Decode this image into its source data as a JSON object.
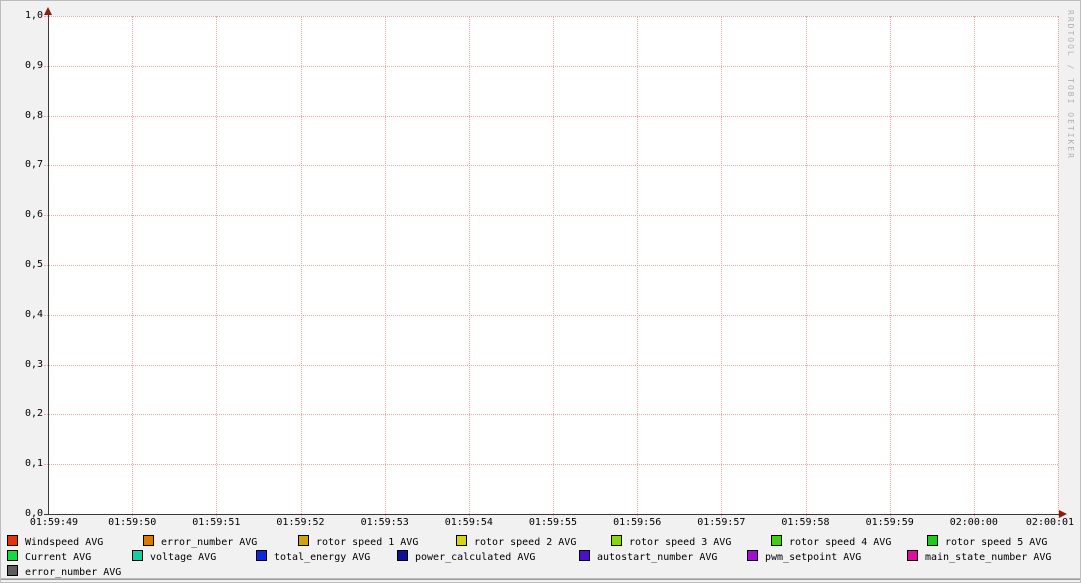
{
  "meta": {
    "watermark": "RRDTOOL / TOBI OETIKER",
    "background_color": "#f1f1f1",
    "grid_color": "#eda5a5",
    "axis_color": "#3a3a3a",
    "arrow_color": "#8f1c10"
  },
  "chart_data": {
    "type": "line",
    "title": "",
    "xlabel": "",
    "ylabel": "",
    "ylim": [
      0.0,
      1.0
    ],
    "y_tick_step": 0.1,
    "y_tick_labels": [
      "1,0",
      "0,9",
      "0,8",
      "0,7",
      "0,6",
      "0,5",
      "0,4",
      "0,3",
      "0,2",
      "0,1",
      "0,0"
    ],
    "x_tick_labels": [
      "01:59:49",
      "01:59:50",
      "01:59:51",
      "01:59:52",
      "01:59:53",
      "01:59:54",
      "01:59:55",
      "01:59:56",
      "01:59:57",
      "01:59:58",
      "01:59:59",
      "02:00:00",
      "02:00:01"
    ],
    "grid": true,
    "legend_position": "bottom",
    "note": "Empty RRDtool graph: no data points are plotted for any series.",
    "series": [
      {
        "name": "Windspeed AVG",
        "color": "#e7310e",
        "values": []
      },
      {
        "name": "error_number AVG",
        "color": "#e07800",
        "values": []
      },
      {
        "name": "rotor speed 1 AVG",
        "color": "#cfa30d",
        "values": []
      },
      {
        "name": "rotor speed 2 AVG",
        "color": "#d9d411",
        "values": []
      },
      {
        "name": "rotor speed 3 AVG",
        "color": "#87d60e",
        "values": []
      },
      {
        "name": "rotor speed 4 AVG",
        "color": "#3ed00e",
        "values": []
      },
      {
        "name": "rotor speed 5 AVG",
        "color": "#1ecb19",
        "values": []
      },
      {
        "name": "Current AVG",
        "color": "#0ddd3d",
        "values": []
      },
      {
        "name": "voltage AVG",
        "color": "#0dd0a8",
        "values": []
      },
      {
        "name": "total_energy AVG",
        "color": "#0d28dd",
        "values": []
      },
      {
        "name": "power_calculated AVG",
        "color": "#101095",
        "values": []
      },
      {
        "name": "autostart_number AVG",
        "color": "#4a0ecf",
        "values": []
      },
      {
        "name": "pwm_setpoint AVG",
        "color": "#a30ed0",
        "values": []
      },
      {
        "name": "main_state_number AVG",
        "color": "#dd0d9e",
        "values": []
      },
      {
        "name": "error_number AVG",
        "color": "#5d5d5d",
        "values": []
      }
    ]
  },
  "legend": {
    "rows": [
      {
        "items": [
          {
            "label": "Windspeed AVG",
            "color": "#e7310e"
          },
          {
            "label": "error_number AVG",
            "color": "#e07800"
          },
          {
            "label": "rotor speed 1 AVG",
            "color": "#cfa30d"
          },
          {
            "label": "rotor speed 2 AVG",
            "color": "#d9d411"
          },
          {
            "label": "rotor speed 3 AVG",
            "color": "#87d60e"
          },
          {
            "label": "rotor speed 4 AVG",
            "color": "#3ed00e"
          },
          {
            "label": "rotor speed 5 AVG",
            "color": "#1ecb19"
          }
        ]
      },
      {
        "items": [
          {
            "label": "Current AVG",
            "color": "#0ddd3d"
          },
          {
            "label": "voltage AVG",
            "color": "#0dd0a8"
          },
          {
            "label": "total_energy AVG",
            "color": "#0d28dd"
          },
          {
            "label": "power_calculated AVG",
            "color": "#101095"
          },
          {
            "label": "autostart_number AVG",
            "color": "#4a0ecf"
          },
          {
            "label": "pwm_setpoint AVG",
            "color": "#a30ed0"
          },
          {
            "label": "main_state_number AVG",
            "color": "#dd0d9e"
          }
        ]
      },
      {
        "items": [
          {
            "label": "error_number AVG",
            "color": "#5d5d5d"
          }
        ]
      }
    ]
  }
}
